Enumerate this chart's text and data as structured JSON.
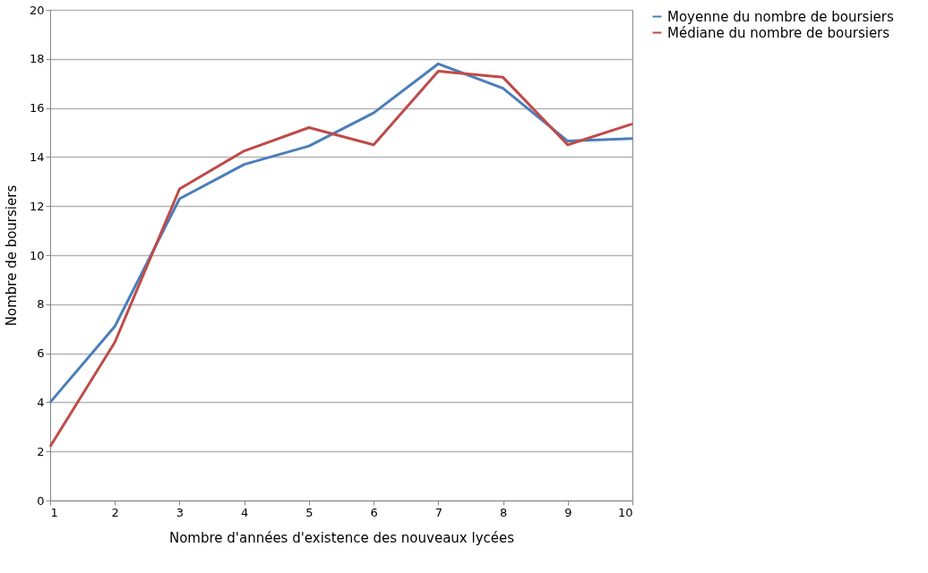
{
  "chart_data": {
    "type": "line",
    "xlabel": "Nombre d'années d'existence des nouveaux lycées",
    "ylabel": "Nombre de boursiers",
    "x": [
      1,
      2,
      3,
      4,
      5,
      6,
      7,
      8,
      9,
      10
    ],
    "series": [
      {
        "name": "Moyenne du nombre de boursiers",
        "color": "#4a7ebb",
        "values": [
          4.0,
          7.1,
          12.3,
          13.7,
          14.45,
          15.8,
          17.8,
          16.8,
          14.65,
          14.75
        ]
      },
      {
        "name": "Médiane du nombre de boursiers",
        "color": "#be4b48",
        "values": [
          2.2,
          6.45,
          12.7,
          14.25,
          15.2,
          14.5,
          17.5,
          17.25,
          14.5,
          15.35
        ]
      }
    ],
    "xlim": [
      1,
      10
    ],
    "xticks": [
      1,
      2,
      3,
      4,
      5,
      6,
      7,
      8,
      9,
      10
    ],
    "ylim": [
      0,
      20
    ],
    "yticks": [
      0,
      2,
      4,
      6,
      8,
      10,
      12,
      14,
      16,
      18,
      20
    ],
    "grid": "y",
    "legend": "right",
    "marker": "none",
    "line_style": "solid"
  }
}
